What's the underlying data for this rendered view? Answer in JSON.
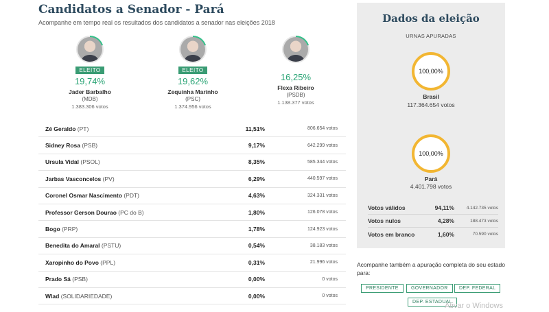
{
  "header": {
    "title": "Candidatos a Senador - Pará",
    "subtitle": "Acompanhe em tempo real os resultados dos candidatos a senador nas eleições 2018"
  },
  "top_candidates": [
    {
      "name": "Jader Barbalho",
      "party": "(MDB)",
      "pct": "19,74%",
      "votes": "1.383.306 votos",
      "badge": "ELEITO"
    },
    {
      "name": "Zequinha Marinho",
      "party": "(PSC)",
      "pct": "19,62%",
      "votes": "1.374.956 votos",
      "badge": "ELEITO"
    },
    {
      "name": "Flexa Ribeiro",
      "party": "(PSDB)",
      "pct": "16,25%",
      "votes": "1.138.377 votos",
      "badge": ""
    }
  ],
  "candidates": [
    {
      "name": "Zé Geraldo",
      "party": "(PT)",
      "pct": "11,51%",
      "votes": "806.654 votos"
    },
    {
      "name": "Sidney Rosa",
      "party": "(PSB)",
      "pct": "9,17%",
      "votes": "642.299 votos"
    },
    {
      "name": "Ursula Vidal",
      "party": "(PSOL)",
      "pct": "8,35%",
      "votes": "585.344 votos"
    },
    {
      "name": "Jarbas Vasconcelos",
      "party": "(PV)",
      "pct": "6,29%",
      "votes": "440.597 votos"
    },
    {
      "name": "Coronel Osmar Nascimento",
      "party": "(PDT)",
      "pct": "4,63%",
      "votes": "324.331 votos"
    },
    {
      "name": "Professor Gerson Dourao",
      "party": "(PC do B)",
      "pct": "1,80%",
      "votes": "126.078 votos"
    },
    {
      "name": "Bogo",
      "party": "(PRP)",
      "pct": "1,78%",
      "votes": "124.923 votos"
    },
    {
      "name": "Benedita do Amaral",
      "party": "(PSTU)",
      "pct": "0,54%",
      "votes": "38.183 votos"
    },
    {
      "name": "Xaropinho do Povo",
      "party": "(PPL)",
      "pct": "0,31%",
      "votes": "21.996 votos"
    },
    {
      "name": "Prado Sá",
      "party": "(PSB)",
      "pct": "0,00%",
      "votes": "0 votos"
    },
    {
      "name": "Wlad",
      "party": "(SOLIDARIEDADE)",
      "pct": "0,00%",
      "votes": "0 votos"
    }
  ],
  "sidebar": {
    "title": "Dados da eleição",
    "subtitle": "URNAS APURADAS",
    "brasil": {
      "pct": "100,00%",
      "label": "Brasil",
      "votes": "117.364.654 votos"
    },
    "para": {
      "pct": "100,00%",
      "label": "Pará",
      "votes": "4.401.798 votos"
    },
    "stats": [
      {
        "label": "Votos válidos",
        "pct": "94,11%",
        "votes": "4.142.735 votos"
      },
      {
        "label": "Votos nulos",
        "pct": "4,28%",
        "votes": "188.473 votos"
      },
      {
        "label": "Votos em branco",
        "pct": "1,60%",
        "votes": "70.590 votos"
      }
    ]
  },
  "follow": {
    "text": "Acompanhe também a apuração completa do seu estado para:",
    "buttons": [
      "PRESIDENTE",
      "GOVERNADOR",
      "DEP. FEDERAL",
      "DEP. ESTADUAL"
    ]
  },
  "watermark": "Ativar o Windows",
  "colors": {
    "accent": "#3a9c74",
    "ring": "#f2b632",
    "title": "#2d4a5e"
  }
}
